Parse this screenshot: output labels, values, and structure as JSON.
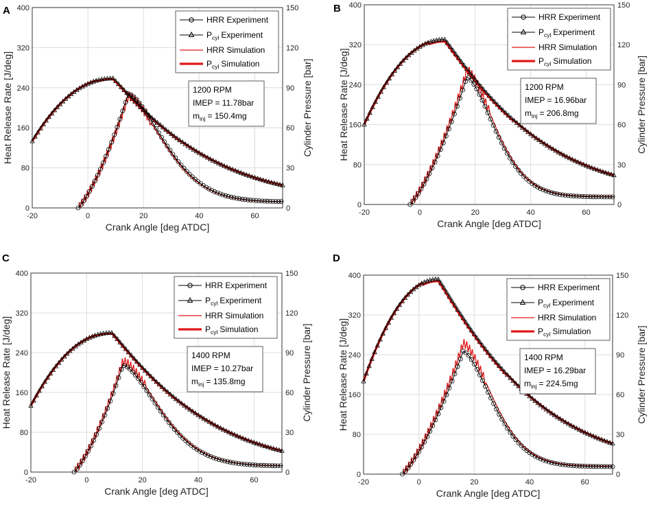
{
  "chart_data": [
    {
      "panel": "A",
      "type": "line",
      "xlabel": "Crank Angle [deg ATDC]",
      "ylabel": "Heat Release Rate [J/deg]",
      "y2label": "Cylinder Pressure [bar]",
      "xlim": [
        -20,
        70
      ],
      "ylim": [
        0,
        400
      ],
      "y2lim": [
        0,
        150
      ],
      "xticks": [
        "-20",
        "0",
        "20",
        "40",
        "60"
      ],
      "yticks": [
        "0",
        "80",
        "160",
        "240",
        "320",
        "400"
      ],
      "y2ticks": [
        "0",
        "30",
        "60",
        "90",
        "120",
        "150"
      ],
      "grid": true,
      "legend": [
        "HRR Experiment",
        "P",
        "cyl",
        "Experiment",
        "HRR Simulation",
        "P",
        "cyl",
        "Simulation"
      ],
      "annotation": {
        "rpm": "1200 RPM",
        "imep": "IMEP = 11.78bar",
        "minj_m": "m",
        "minj_sub": "inj",
        "minj_val": "= 150.4mg"
      },
      "hrr": {
        "start": -3.5,
        "end": 70,
        "peak_x": 14.5,
        "peak": 228,
        "w1": 6.5,
        "tail_k": 0.93,
        "end_val": 12
      },
      "hrr_sim_peak": 222,
      "pressure": {
        "peak_x": 9,
        "peak": 97,
        "start_val": 50,
        "end_val": 17
      },
      "pressure_sim_peak": 96.5
    },
    {
      "panel": "B",
      "type": "line",
      "xlabel": "Crank Angle [deg ATDC]",
      "ylabel": "Heat Release Rate [J/deg]",
      "y2label": "Cylinder Pressure [bar]",
      "xlim": [
        -20,
        70
      ],
      "ylim": [
        0,
        400
      ],
      "y2lim": [
        0,
        150
      ],
      "xticks": [
        "-20",
        "0",
        "20",
        "40",
        "60"
      ],
      "yticks": [
        "0",
        "80",
        "160",
        "240",
        "320",
        "400"
      ],
      "y2ticks": [
        "0",
        "30",
        "60",
        "90",
        "120",
        "150"
      ],
      "grid": true,
      "legend": [
        "HRR Experiment",
        "P",
        "cyl",
        "Experiment",
        "HRR Simulation",
        "P",
        "cyl",
        "Simulation"
      ],
      "annotation": {
        "rpm": "1200 RPM",
        "imep": "IMEP = 16.96bar",
        "minj_m": "m",
        "minj_sub": "inj",
        "minj_val": "= 206.8mg"
      },
      "hrr": {
        "start": -3.5,
        "end": 70,
        "peak_x": 17,
        "peak": 255,
        "w1": 7.5,
        "tail_k": 1.25,
        "end_val": 15
      },
      "hrr_sim_peak": 268,
      "pressure": {
        "peak_x": 9,
        "peak": 124,
        "start_val": 60,
        "end_val": 22
      },
      "pressure_sim_peak": 122.5
    },
    {
      "panel": "C",
      "type": "line",
      "xlabel": "Crank Angle [deg ATDC]",
      "ylabel": "Heat Release Rate [J/deg]",
      "y2label": "Cylinder Pressure [bar]",
      "xlim": [
        -20,
        70
      ],
      "ylim": [
        0,
        400
      ],
      "y2lim": [
        0,
        150
      ],
      "xticks": [
        "-20",
        "0",
        "20",
        "40",
        "60"
      ],
      "yticks": [
        "0",
        "80",
        "160",
        "240",
        "320",
        "400"
      ],
      "y2ticks": [
        "0",
        "30",
        "60",
        "90",
        "120",
        "150"
      ],
      "grid": true,
      "legend": [
        "HRR Experiment",
        "P",
        "cyl",
        "Experiment",
        "HRR Simulation",
        "P",
        "cyl",
        "Simulation"
      ],
      "annotation": {
        "rpm": "1400 RPM",
        "imep": "IMEP = 10.27bar",
        "minj_m": "m",
        "minj_sub": "inj",
        "minj_val": "= 135.8mg"
      },
      "hrr": {
        "start": -4.5,
        "end": 70,
        "peak_x": 13,
        "peak": 215,
        "w1": 7.5,
        "tail_k": 0.95,
        "end_val": 12
      },
      "hrr_sim_peak": 222,
      "pressure": {
        "peak_x": 9,
        "peak": 105,
        "start_val": 50,
        "end_val": 16
      },
      "pressure_sim_peak": 104.5
    },
    {
      "panel": "D",
      "type": "line",
      "xlabel": "Crank Angle [deg ATDC]",
      "ylabel": "Heat Release Rate [J/deg]",
      "y2label": "Cylinder Pressure [bar]",
      "xlim": [
        -20,
        70
      ],
      "ylim": [
        0,
        400
      ],
      "y2lim": [
        0,
        150
      ],
      "xticks": [
        "-20",
        "0",
        "20",
        "40",
        "60"
      ],
      "yticks": [
        "0",
        "80",
        "160",
        "240",
        "320",
        "400"
      ],
      "y2ticks": [
        "0",
        "30",
        "60",
        "90",
        "120",
        "150"
      ],
      "grid": true,
      "legend": [
        "HRR Experiment",
        "P",
        "cyl",
        "Experiment",
        "HRR Simulation",
        "P",
        "cyl",
        "Simulation"
      ],
      "annotation": {
        "rpm": "1400 RPM",
        "imep": "IMEP = 16.29bar",
        "minj_m": "m",
        "minj_sub": "inj",
        "minj_val": "= 224.5mg"
      },
      "hrr": {
        "start": -6,
        "end": 70,
        "peak_x": 16,
        "peak": 247,
        "w1": 9.5,
        "tail_k": 1.2,
        "end_val": 15
      },
      "hrr_sim_peak": 262,
      "pressure": {
        "peak_x": 7,
        "peak": 147,
        "start_val": 70,
        "end_val": 23
      },
      "pressure_sim_peak": 145.5
    }
  ],
  "colors": {
    "experiment": "#000000",
    "simulation": "#e01818",
    "grid": "#dcdcdc"
  }
}
